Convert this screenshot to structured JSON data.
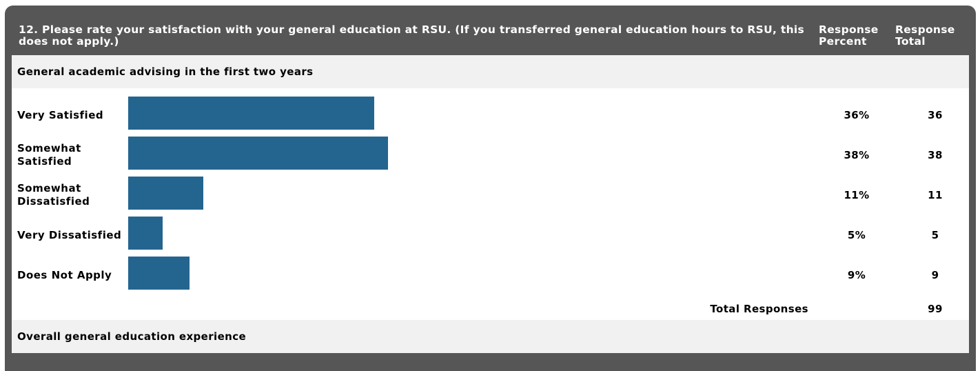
{
  "question": {
    "title": "12. Please rate your satisfaction with your general education at RSU. (If you transferred general education hours to RSU, this does not apply.)",
    "col_percent": "Response Percent",
    "col_total": "Response Total"
  },
  "sections": [
    {
      "title": "General academic advising in the first two years"
    },
    {
      "title": "Overall general education experience"
    }
  ],
  "colors": {
    "bar": "#246590",
    "frame": "#565656",
    "section_bg": "#f1f1f1"
  },
  "chart_data": {
    "type": "bar",
    "orientation": "horizontal",
    "title": "General academic advising in the first two years",
    "categories": [
      "Very Satisfied",
      "Somewhat Satisfied",
      "Somewhat Dissatisfied",
      "Very Dissatisfied",
      "Does Not Apply"
    ],
    "percent_labels": [
      "36%",
      "38%",
      "11%",
      "5%",
      "9%"
    ],
    "percent_values": [
      36,
      38,
      11,
      5,
      9
    ],
    "totals": [
      36,
      38,
      11,
      5,
      9
    ],
    "total_label": "Total Responses",
    "total_value": 99,
    "xlim": [
      0,
      100
    ]
  }
}
